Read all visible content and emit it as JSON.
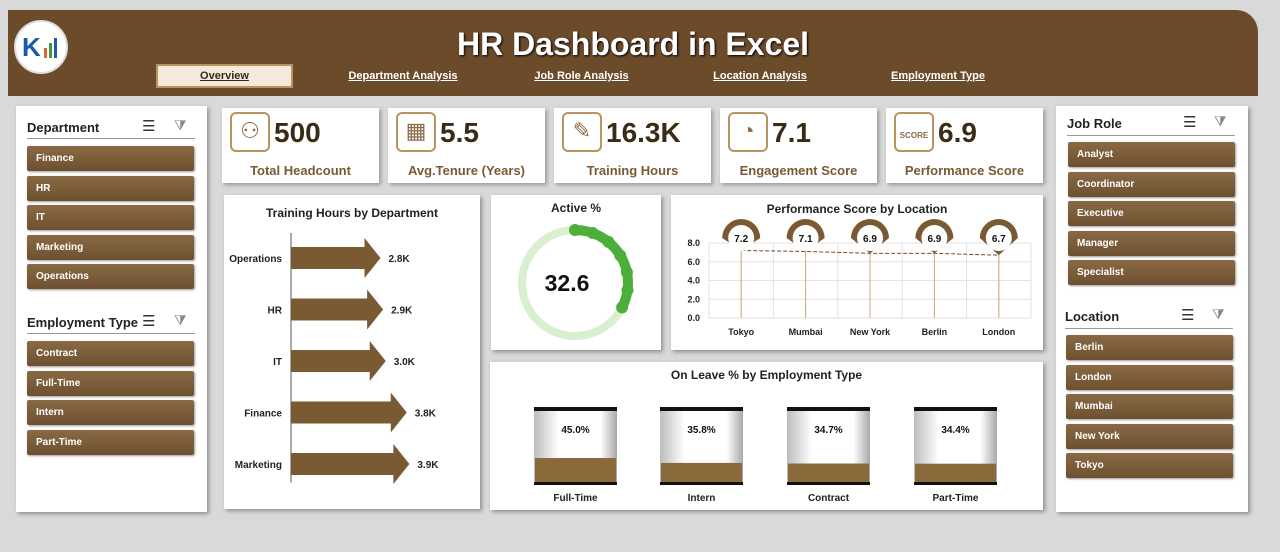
{
  "header": {
    "title": "HR Dashboard in Excel",
    "tabs": [
      {
        "label": "Overview",
        "active": true
      },
      {
        "label": "Department Analysis",
        "active": false
      },
      {
        "label": "Job Role Analysis",
        "active": false
      },
      {
        "label": "Location Analysis",
        "active": false
      },
      {
        "label": "Employment Type",
        "active": false
      }
    ]
  },
  "slicers": {
    "department": {
      "title": "Department",
      "items": [
        "Finance",
        "HR",
        "IT",
        "Marketing",
        "Operations"
      ]
    },
    "employment_type": {
      "title": "Employment Type",
      "items": [
        "Contract",
        "Full-Time",
        "Intern",
        "Part-Time"
      ]
    },
    "job_role": {
      "title": "Job Role",
      "items": [
        "Analyst",
        "Coordinator",
        "Executive",
        "Manager",
        "Specialist"
      ]
    },
    "location": {
      "title": "Location",
      "items": [
        "Berlin",
        "London",
        "Mumbai",
        "New York",
        "Tokyo"
      ]
    }
  },
  "kpis": [
    {
      "value": "500",
      "label": "Total Headcount",
      "icon": "org-chart-icon"
    },
    {
      "value": "5.5",
      "label": "Avg.Tenure (Years)",
      "icon": "calendar-icon"
    },
    {
      "value": "16.3K",
      "label": "Training Hours",
      "icon": "training-icon"
    },
    {
      "value": "7.1",
      "label": "Engagement Score",
      "icon": "gauge-icon"
    },
    {
      "value": "6.9",
      "label": "Performance Score",
      "icon": "score-icon"
    }
  ],
  "colors": {
    "brown": "#6b4b2a",
    "gold": "#8a6a44",
    "green": "#4caf3a",
    "light_green": "#d8f0d0"
  },
  "chart_data": [
    {
      "type": "bar",
      "title": "Training Hours by Department",
      "categories": [
        "Operations",
        "HR",
        "IT",
        "Finance",
        "Marketing"
      ],
      "values": [
        2.8,
        2.9,
        3.0,
        3.8,
        3.9
      ],
      "labels": [
        "2.8K",
        "2.9K",
        "3.0K",
        "3.8K",
        "3.9K"
      ],
      "orientation": "horizontal"
    },
    {
      "type": "pie",
      "title": "Active %",
      "value": 32.6,
      "label": "32.6"
    },
    {
      "type": "line",
      "title": "Performance Score by Location",
      "categories": [
        "Tokyo",
        "Mumbai",
        "New York",
        "Berlin",
        "London"
      ],
      "values": [
        7.2,
        7.1,
        6.9,
        6.9,
        6.7
      ],
      "labels": [
        "7.2",
        "7.1",
        "6.9",
        "6.9",
        "6.7"
      ],
      "ylim": [
        0,
        8
      ],
      "yticks": [
        "8.0",
        "6.0",
        "4.0",
        "2.0",
        "0.0"
      ],
      "grid": true
    },
    {
      "type": "bar",
      "title": "On Leave % by Employment Type",
      "categories": [
        "Full-Time",
        "Intern",
        "Contract",
        "Part-Time"
      ],
      "values": [
        45.0,
        35.8,
        34.7,
        34.4
      ],
      "labels": [
        "45.0%",
        "35.8%",
        "34.7%",
        "34.4%"
      ],
      "ylim": [
        0,
        100
      ]
    }
  ]
}
